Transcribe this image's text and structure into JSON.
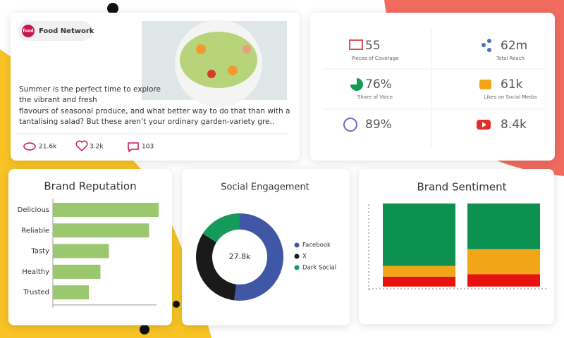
{
  "post": {
    "brand": "Food Network",
    "brand_logo": "food",
    "text_lines": [
      "Summer is the perfect time to explore",
      "the vibrant and fresh",
      "flavours of seasonal produce, and what better way to do that than with a",
      "tantalising salad? But these aren’t your ordinary garden-variety gre.."
    ],
    "views": "21.6k",
    "likes": "3.2k",
    "comments": "103"
  },
  "stats": [
    {
      "value": "55",
      "label": "Pieces of Coverage"
    },
    {
      "value": "62m",
      "label": "Total Reach"
    },
    {
      "value": "76%",
      "label": "Share of Voice"
    },
    {
      "value": "61k",
      "label": "Likes on Social Media"
    },
    {
      "value": "89%"
    },
    {
      "value": "8.4k"
    }
  ],
  "chart_data": [
    {
      "type": "hbar",
      "title": "Brand Reputation",
      "categories": [
        "Delicious",
        "Reliable",
        "Tasty",
        "Healthy",
        "Trusted"
      ],
      "values": [
        100,
        91,
        53,
        45,
        34
      ],
      "xlim": [
        0,
        100
      ],
      "color": "#9bc86e"
    },
    {
      "type": "donut",
      "title": "Social Engagement",
      "center_label": "27.8k",
      "categories": [
        "Facebook",
        "X",
        "Dark Social"
      ],
      "values": [
        52,
        32,
        16
      ],
      "colors": [
        "#3f57a5",
        "#1a1a1a",
        "#159a5a"
      ]
    },
    {
      "type": "stacked_bar",
      "title": "Brand Sentiment",
      "categories": [
        null,
        null
      ],
      "ylim": [
        0,
        100
      ],
      "series": [
        {
          "color": "#e8120c",
          "values": [
            12,
            15
          ]
        },
        {
          "color": "#f2a516",
          "values": [
            13,
            30
          ]
        },
        {
          "color": "#0c9150",
          "values": [
            75,
            55
          ]
        }
      ]
    }
  ]
}
